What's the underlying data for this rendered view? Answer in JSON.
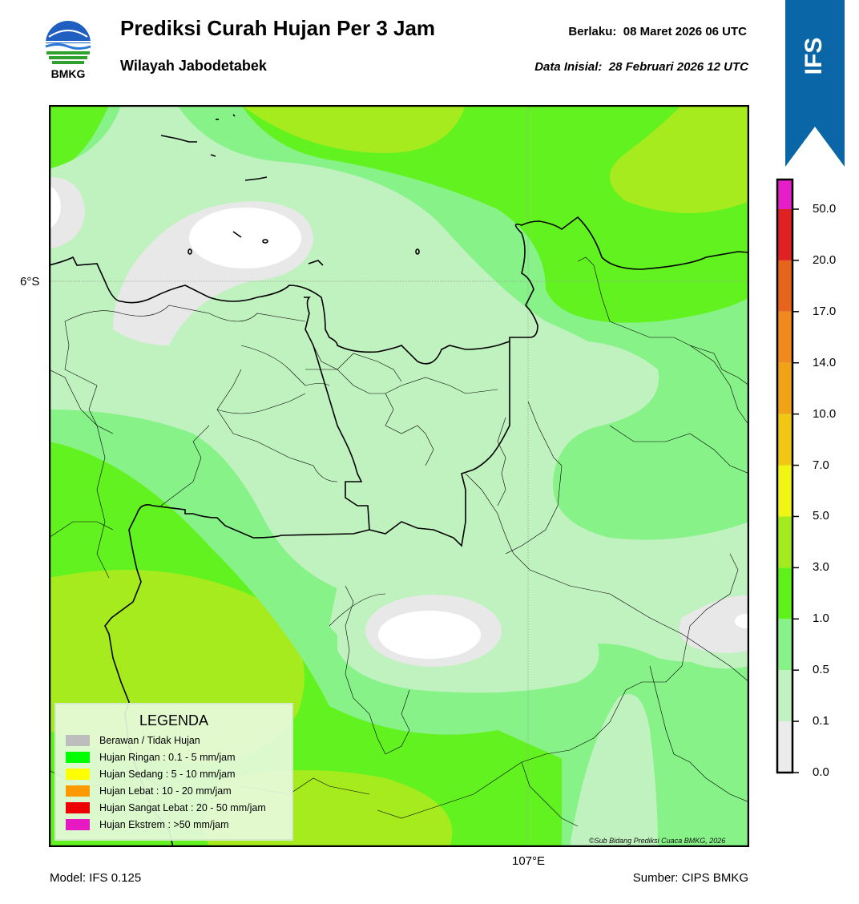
{
  "header": {
    "logo_text": "BMKG",
    "title": "Prediksi Curah Hujan Per 3 Jam",
    "subtitle": "Wilayah Jabodetabek",
    "valid_label": "Berlaku:",
    "valid_value": "08 Maret 2026 06 UTC",
    "init_label": "Data Inisial:",
    "init_value": "28 Februari 2026 12 UTC",
    "banner_text": "IFS"
  },
  "map": {
    "lat_label": "6°S",
    "lon_label": "107°E",
    "copyright": "©Sub Bidang Prediksi Cuaca BMKG, 2026"
  },
  "footer": {
    "model": "Model: IFS 0.125",
    "source": "Sumber: CIPS BMKG"
  },
  "colorbar": {
    "ticks": [
      "0.0",
      "0.1",
      "0.5",
      "1.0",
      "3.0",
      "5.0",
      "7.0",
      "10.0",
      "14.0",
      "17.0",
      "20.0",
      "50.0"
    ],
    "colors": [
      "#ebebeb",
      "#c2f2c2",
      "#87f287",
      "#5ef21a",
      "#a3eb1f",
      "#f0f514",
      "#f0c714",
      "#f0a314",
      "#f08a1f",
      "#e8631c",
      "#e02121",
      "#e61ec8"
    ]
  },
  "legend": {
    "title": "LEGENDA",
    "items": [
      {
        "label": "Berawan / Tidak Hujan",
        "color": "#bdbdbd"
      },
      {
        "label": "Hujan Ringan : 0.1 - 5 mm/jam",
        "color": "#00ff00"
      },
      {
        "label": "Hujan Sedang : 5 - 10 mm/jam",
        "color": "#ffff00"
      },
      {
        "label": "Hujan Lebat : 10 - 20 mm/jam",
        "color": "#ff9900"
      },
      {
        "label": "Hujan Sangat Lebat : 20 - 50 mm/jam",
        "color": "#ee0000"
      },
      {
        "label": "Hujan Ekstrem : >50 mm/jam",
        "color": "#e619c2"
      }
    ]
  }
}
